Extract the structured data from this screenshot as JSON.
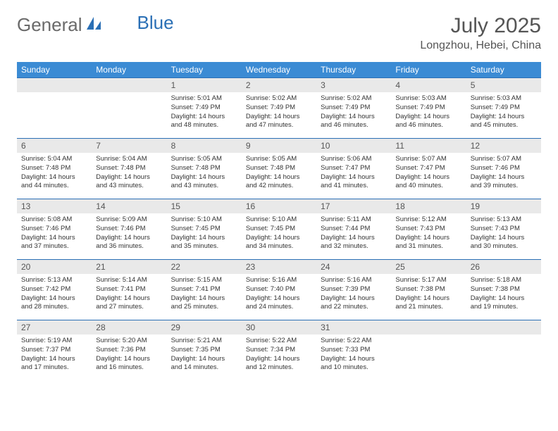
{
  "logo": {
    "text1": "General",
    "text2": "Blue"
  },
  "title": "July 2025",
  "location": "Longzhou, Hebei, China",
  "colors": {
    "header_bg": "#3b8bd4",
    "header_text": "#ffffff",
    "daynum_bg": "#e9e9e9",
    "row_border": "#2a6fb5",
    "body_text": "#333333",
    "title_text": "#555555",
    "logo_gray": "#6a6a6a",
    "logo_blue": "#2a6fb5"
  },
  "weekdays": [
    "Sunday",
    "Monday",
    "Tuesday",
    "Wednesday",
    "Thursday",
    "Friday",
    "Saturday"
  ],
  "weeks": [
    [
      null,
      null,
      {
        "n": "1",
        "sr": "5:01 AM",
        "ss": "7:49 PM",
        "dl": "14 hours and 48 minutes."
      },
      {
        "n": "2",
        "sr": "5:02 AM",
        "ss": "7:49 PM",
        "dl": "14 hours and 47 minutes."
      },
      {
        "n": "3",
        "sr": "5:02 AM",
        "ss": "7:49 PM",
        "dl": "14 hours and 46 minutes."
      },
      {
        "n": "4",
        "sr": "5:03 AM",
        "ss": "7:49 PM",
        "dl": "14 hours and 46 minutes."
      },
      {
        "n": "5",
        "sr": "5:03 AM",
        "ss": "7:49 PM",
        "dl": "14 hours and 45 minutes."
      }
    ],
    [
      {
        "n": "6",
        "sr": "5:04 AM",
        "ss": "7:48 PM",
        "dl": "14 hours and 44 minutes."
      },
      {
        "n": "7",
        "sr": "5:04 AM",
        "ss": "7:48 PM",
        "dl": "14 hours and 43 minutes."
      },
      {
        "n": "8",
        "sr": "5:05 AM",
        "ss": "7:48 PM",
        "dl": "14 hours and 43 minutes."
      },
      {
        "n": "9",
        "sr": "5:05 AM",
        "ss": "7:48 PM",
        "dl": "14 hours and 42 minutes."
      },
      {
        "n": "10",
        "sr": "5:06 AM",
        "ss": "7:47 PM",
        "dl": "14 hours and 41 minutes."
      },
      {
        "n": "11",
        "sr": "5:07 AM",
        "ss": "7:47 PM",
        "dl": "14 hours and 40 minutes."
      },
      {
        "n": "12",
        "sr": "5:07 AM",
        "ss": "7:46 PM",
        "dl": "14 hours and 39 minutes."
      }
    ],
    [
      {
        "n": "13",
        "sr": "5:08 AM",
        "ss": "7:46 PM",
        "dl": "14 hours and 37 minutes."
      },
      {
        "n": "14",
        "sr": "5:09 AM",
        "ss": "7:46 PM",
        "dl": "14 hours and 36 minutes."
      },
      {
        "n": "15",
        "sr": "5:10 AM",
        "ss": "7:45 PM",
        "dl": "14 hours and 35 minutes."
      },
      {
        "n": "16",
        "sr": "5:10 AM",
        "ss": "7:45 PM",
        "dl": "14 hours and 34 minutes."
      },
      {
        "n": "17",
        "sr": "5:11 AM",
        "ss": "7:44 PM",
        "dl": "14 hours and 32 minutes."
      },
      {
        "n": "18",
        "sr": "5:12 AM",
        "ss": "7:43 PM",
        "dl": "14 hours and 31 minutes."
      },
      {
        "n": "19",
        "sr": "5:13 AM",
        "ss": "7:43 PM",
        "dl": "14 hours and 30 minutes."
      }
    ],
    [
      {
        "n": "20",
        "sr": "5:13 AM",
        "ss": "7:42 PM",
        "dl": "14 hours and 28 minutes."
      },
      {
        "n": "21",
        "sr": "5:14 AM",
        "ss": "7:41 PM",
        "dl": "14 hours and 27 minutes."
      },
      {
        "n": "22",
        "sr": "5:15 AM",
        "ss": "7:41 PM",
        "dl": "14 hours and 25 minutes."
      },
      {
        "n": "23",
        "sr": "5:16 AM",
        "ss": "7:40 PM",
        "dl": "14 hours and 24 minutes."
      },
      {
        "n": "24",
        "sr": "5:16 AM",
        "ss": "7:39 PM",
        "dl": "14 hours and 22 minutes."
      },
      {
        "n": "25",
        "sr": "5:17 AM",
        "ss": "7:38 PM",
        "dl": "14 hours and 21 minutes."
      },
      {
        "n": "26",
        "sr": "5:18 AM",
        "ss": "7:38 PM",
        "dl": "14 hours and 19 minutes."
      }
    ],
    [
      {
        "n": "27",
        "sr": "5:19 AM",
        "ss": "7:37 PM",
        "dl": "14 hours and 17 minutes."
      },
      {
        "n": "28",
        "sr": "5:20 AM",
        "ss": "7:36 PM",
        "dl": "14 hours and 16 minutes."
      },
      {
        "n": "29",
        "sr": "5:21 AM",
        "ss": "7:35 PM",
        "dl": "14 hours and 14 minutes."
      },
      {
        "n": "30",
        "sr": "5:22 AM",
        "ss": "7:34 PM",
        "dl": "14 hours and 12 minutes."
      },
      {
        "n": "31",
        "sr": "5:22 AM",
        "ss": "7:33 PM",
        "dl": "14 hours and 10 minutes."
      },
      null,
      null
    ]
  ],
  "labels": {
    "sunrise": "Sunrise:",
    "sunset": "Sunset:",
    "daylight": "Daylight:"
  }
}
